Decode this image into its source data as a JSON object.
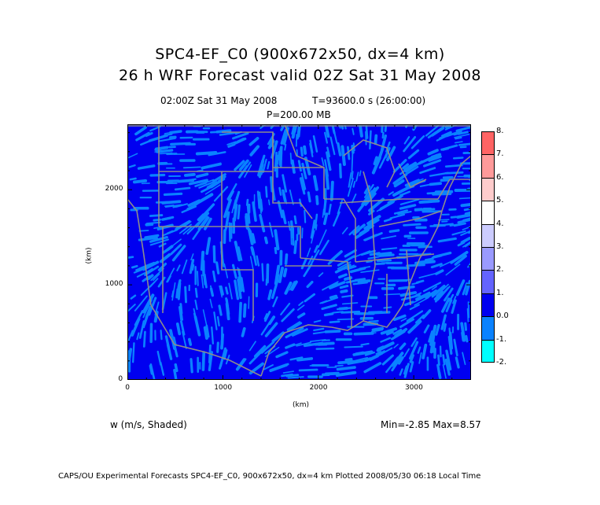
{
  "title": {
    "line1": "SPC4-EF_C0 (900x672x50, dx=4 km)",
    "line2": "26 h WRF Forecast valid 02Z Sat 31 May 2008"
  },
  "subtitle": {
    "time": "02:00Z Sat 31 May 2008",
    "seconds": "T=93600.0 s (26:00:00)",
    "level": "P=200.00 MB"
  },
  "axes": {
    "x_label": "(km)",
    "y_label": "(km)",
    "x_ticks": [
      "0",
      "1000",
      "2000",
      "3000"
    ],
    "y_ticks": [
      "0",
      "1000",
      "2000"
    ],
    "x_tick_values": [
      0,
      1000,
      2000,
      3000
    ],
    "y_tick_values": [
      0,
      1000,
      2000
    ],
    "x_range": [
      0,
      3600
    ],
    "y_range": [
      0,
      2688
    ]
  },
  "field": {
    "name": "w (m/s, Shaded)",
    "minmax": "Min=-2.85 Max=8.57"
  },
  "colorbar": {
    "labels": [
      "8.",
      "7.",
      "6.",
      "5.",
      "4.",
      "3.",
      "2.",
      "1.",
      "0.0",
      "-1.",
      "-2."
    ],
    "colors": [
      "#ff6464",
      "#ff9a9a",
      "#ffcccc",
      "#ffffff",
      "#ccccff",
      "#9a9aff",
      "#6464ff",
      "#0000f0",
      "#0a82ff",
      "#00ffff"
    ]
  },
  "colors": {
    "dominant_positive": "#0000f0",
    "dominant_negative": "#0a82ff",
    "boundaries": "#8c8c8c"
  },
  "footer": "CAPS/OU Experimental Forecasts  SPC4-EF_C0, 900x672x50, dx=4 km  Plotted 2008/05/30 06:18 Local Time"
}
